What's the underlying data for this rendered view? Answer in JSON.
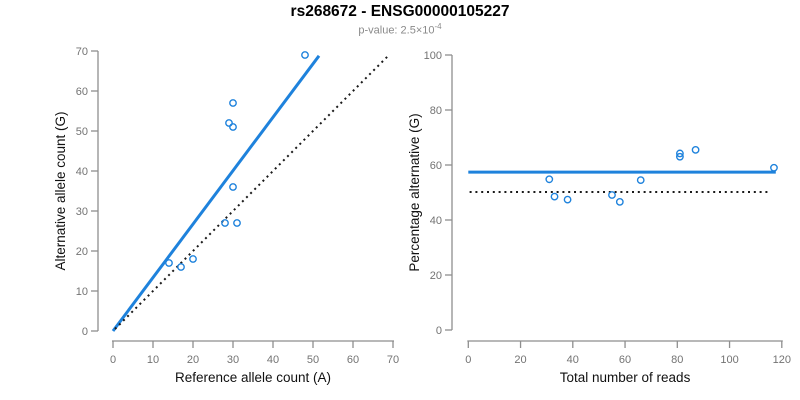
{
  "header": {
    "title": "rs268672 - ENSG00000105227",
    "subtitle_text": "p-value: 2.5×10",
    "subtitle_superscript": "-4"
  },
  "colors": {
    "accent_blue": "#1E82DC",
    "axis_gray": "#8E8E8E",
    "tick_label_gray": "#737373",
    "dotted_line_black": "#1A1A1A",
    "subtitle_gray": "#8A8A8A"
  },
  "chart_data": [
    {
      "name": "allele-count-scatter",
      "type": "scatter",
      "xlabel": "Reference allele count (A)",
      "ylabel": "Alternative allele count (G)",
      "xlim": [
        0,
        70
      ],
      "ylim": [
        0,
        70
      ],
      "xticks": [
        0,
        10,
        20,
        30,
        40,
        50,
        60,
        70
      ],
      "yticks": [
        0,
        10,
        20,
        30,
        40,
        50,
        60,
        70
      ],
      "grid": false,
      "legend": null,
      "points": [
        [
          14,
          17
        ],
        [
          17,
          16
        ],
        [
          20,
          18
        ],
        [
          28,
          27
        ],
        [
          31,
          27
        ],
        [
          30,
          36
        ],
        [
          29,
          52
        ],
        [
          30,
          51
        ],
        [
          30,
          57
        ],
        [
          48,
          69
        ]
      ],
      "lines": [
        {
          "name": "fitted-line",
          "style": "solid",
          "color_key": "accent_blue",
          "from": [
            0,
            0
          ],
          "to": [
            51.5,
            68.8
          ]
        },
        {
          "name": "identity-line",
          "style": "dotted",
          "color_key": "dotted_line_black",
          "from": [
            0.5,
            0.5
          ],
          "to": [
            68.8,
            68.8
          ]
        }
      ]
    },
    {
      "name": "percentage-vs-reads-scatter",
      "type": "scatter",
      "xlabel": "Total number of reads",
      "ylabel": "Percentage alternative (G)",
      "xlim": [
        0,
        120
      ],
      "ylim": [
        0,
        100
      ],
      "xticks": [
        0,
        20,
        40,
        60,
        80,
        100,
        120
      ],
      "yticks": [
        0,
        20,
        40,
        60,
        80,
        100
      ],
      "grid": false,
      "legend": null,
      "points": [
        [
          31,
          54.8
        ],
        [
          33,
          48.5
        ],
        [
          38,
          47.4
        ],
        [
          55,
          49.1
        ],
        [
          58,
          46.6
        ],
        [
          66,
          54.5
        ],
        [
          81,
          64.2
        ],
        [
          81,
          63.0
        ],
        [
          87,
          65.5
        ],
        [
          117,
          59.0
        ]
      ],
      "lines": [
        {
          "name": "fitted-percentage-line",
          "style": "solid",
          "color_key": "accent_blue",
          "from": [
            0,
            57.4
          ],
          "to": [
            117.7,
            57.4
          ]
        },
        {
          "name": "expected-50-percent-line",
          "style": "dotted",
          "color_key": "dotted_line_black",
          "from": [
            0.5,
            50.2
          ],
          "to": [
            115.5,
            50.2
          ]
        }
      ]
    }
  ]
}
